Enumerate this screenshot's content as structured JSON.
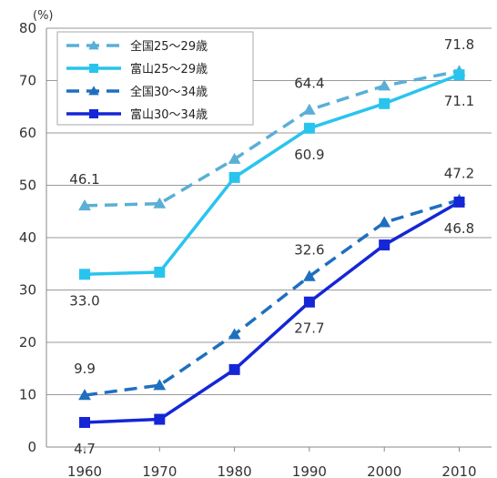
{
  "chart_data": {
    "type": "line",
    "ylabel": "(%)",
    "x": [
      1960,
      1970,
      1980,
      1990,
      2000,
      2010
    ],
    "ylim": [
      0,
      80
    ],
    "yticks": [
      0,
      10,
      20,
      30,
      40,
      50,
      60,
      70,
      80
    ],
    "grid": true,
    "legend_position": "top-left",
    "series": [
      {
        "name": "全国25～29歳",
        "color": "#5aafd6",
        "dash": true,
        "marker": "triangle",
        "values": [
          46.1,
          46.5,
          55.0,
          64.4,
          69.0,
          71.8
        ]
      },
      {
        "name": "富山25～29歳",
        "color": "#29c4ee",
        "dash": false,
        "marker": "square",
        "values": [
          33.0,
          33.4,
          51.5,
          60.9,
          65.6,
          71.1
        ]
      },
      {
        "name": "全国30～34歳",
        "color": "#1f6fbf",
        "dash": true,
        "marker": "triangle",
        "values": [
          9.9,
          11.8,
          21.5,
          32.6,
          42.9,
          47.2
        ]
      },
      {
        "name": "富山30～34歳",
        "color": "#1426d6",
        "dash": false,
        "marker": "square",
        "values": [
          4.7,
          5.3,
          14.8,
          27.7,
          38.6,
          46.8
        ]
      }
    ],
    "data_labels": [
      {
        "text": "46.1",
        "x": 1960,
        "y": 46.1,
        "pos": "above"
      },
      {
        "text": "33.0",
        "x": 1960,
        "y": 33.0,
        "pos": "below"
      },
      {
        "text": "9.9",
        "x": 1960,
        "y": 9.9,
        "pos": "above"
      },
      {
        "text": "4.7",
        "x": 1960,
        "y": 4.7,
        "pos": "below"
      },
      {
        "text": "64.4",
        "x": 1990,
        "y": 64.4,
        "pos": "above"
      },
      {
        "text": "60.9",
        "x": 1990,
        "y": 60.9,
        "pos": "below"
      },
      {
        "text": "32.6",
        "x": 1990,
        "y": 32.6,
        "pos": "above"
      },
      {
        "text": "27.7",
        "x": 1990,
        "y": 27.7,
        "pos": "below"
      },
      {
        "text": "71.8",
        "x": 2010,
        "y": 71.8,
        "pos": "above"
      },
      {
        "text": "71.1",
        "x": 2010,
        "y": 71.1,
        "pos": "below"
      },
      {
        "text": "47.2",
        "x": 2010,
        "y": 47.2,
        "pos": "above"
      },
      {
        "text": "46.8",
        "x": 2010,
        "y": 46.8,
        "pos": "below"
      }
    ]
  }
}
